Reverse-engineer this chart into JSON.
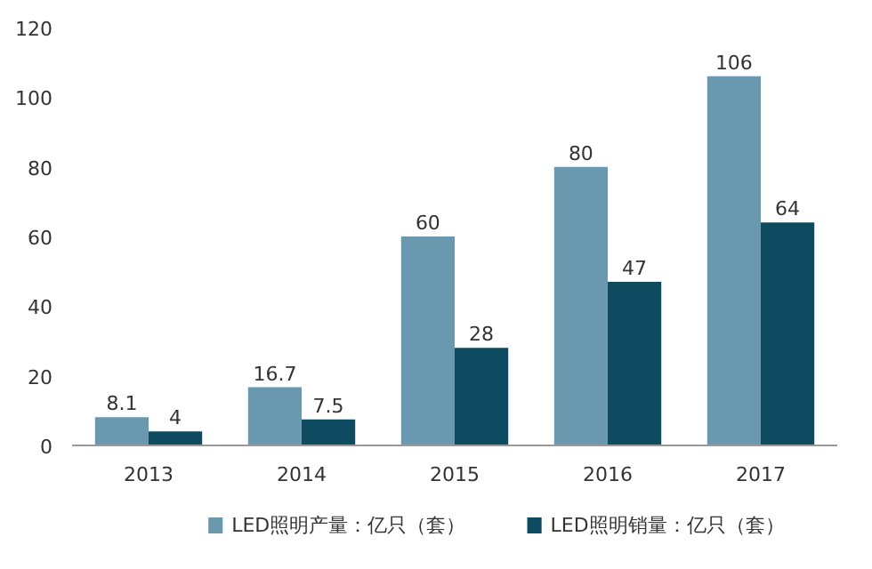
{
  "chart_data": {
    "type": "bar",
    "categories": [
      "2013",
      "2014",
      "2015",
      "2016",
      "2017"
    ],
    "series": [
      {
        "name": "LED照明产量：亿只（套）",
        "color": "#6a98ae",
        "values": [
          8.1,
          16.7,
          60,
          80,
          106
        ]
      },
      {
        "name": "LED照明销量：亿只（套）",
        "color": "#0e4b60",
        "values": [
          4,
          7.5,
          28,
          47,
          64
        ]
      }
    ],
    "ylim": [
      0,
      120
    ],
    "yticks": [
      0,
      20,
      40,
      60,
      80,
      100,
      120
    ],
    "grid": false,
    "legend": "bottom",
    "data_labels": true
  }
}
